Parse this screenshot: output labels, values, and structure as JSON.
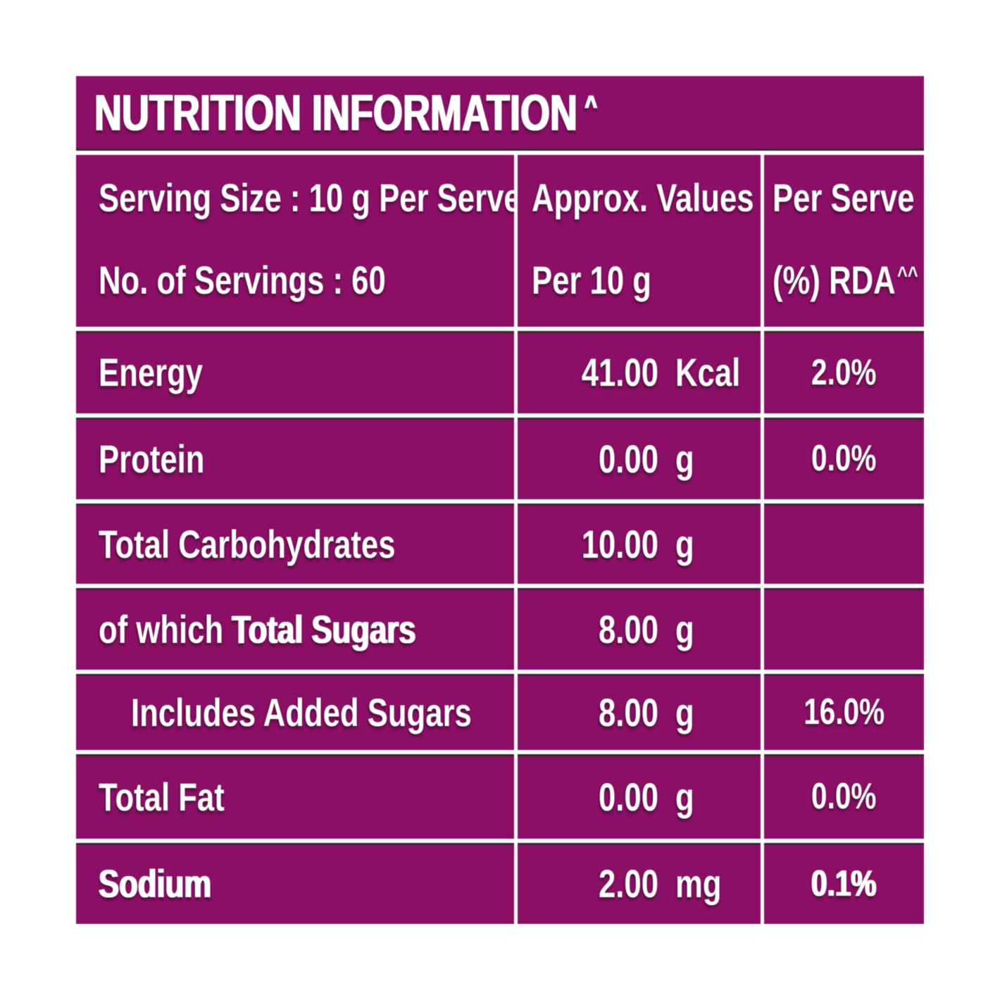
{
  "colors": {
    "bg": "#8b0f66",
    "text": "#ffffff",
    "line": "#ffffff"
  },
  "title": {
    "text": "NUTRITION INFORMATION",
    "sup": "^"
  },
  "header": {
    "col1_line1": "Serving Size : 10 g Per Serve",
    "col1_line2": "No. of Servings : 60",
    "col2_line1": "Approx. Values",
    "col2_line2": "Per 10 g",
    "col3_line1": "Per Serve",
    "col3_line2": "(%) RDA",
    "col3_sup": "^^"
  },
  "table": {
    "rows": [
      {
        "label": "Energy",
        "value": "41.00",
        "unit": "Kcal",
        "rda": "2.0%"
      },
      {
        "label": "Protein",
        "value": "0.00",
        "unit": "g",
        "rda": "0.0%"
      },
      {
        "label": "Total Carbohydrates",
        "value": "10.00",
        "unit": "g",
        "rda": ""
      },
      {
        "label_prefix": "of which ",
        "label": "Total Sugars",
        "value": "8.00",
        "unit": "g",
        "rda": ""
      },
      {
        "label": "Includes Added Sugars",
        "value": "8.00",
        "unit": "g",
        "rda": "16.0%"
      },
      {
        "label": "Total Fat",
        "value": "0.00",
        "unit": "g",
        "rda": "0.0%"
      },
      {
        "label": "Sodium",
        "value": "2.00",
        "unit": "mg",
        "rda": "0.1%"
      }
    ]
  }
}
